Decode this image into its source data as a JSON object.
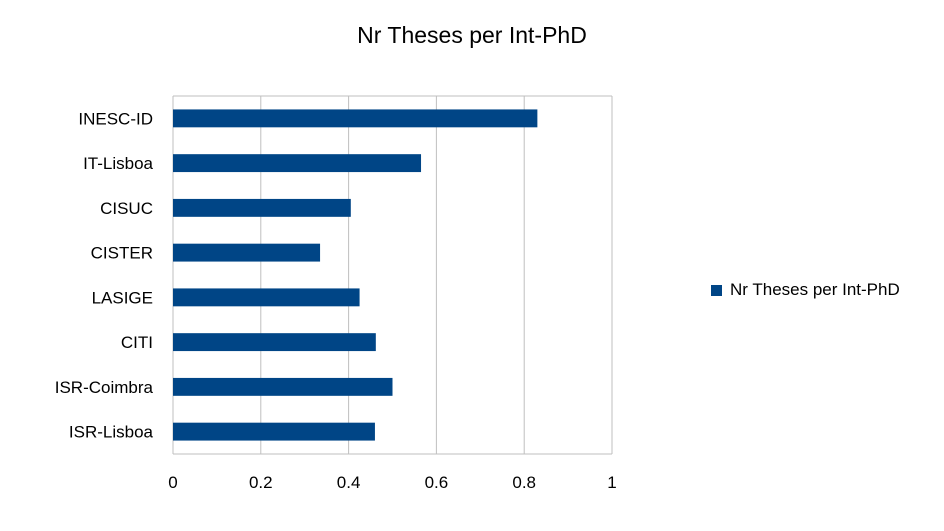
{
  "chart_data": {
    "type": "bar",
    "orientation": "horizontal",
    "title": "Nr Theses per Int-PhD",
    "xlabel": "",
    "ylabel": "",
    "categories": [
      "INESC-ID",
      "IT-Lisboa",
      "CISUC",
      "CISTER",
      "LASIGE",
      "CITI",
      "ISR-Coimbra",
      "ISR-Lisboa"
    ],
    "series": [
      {
        "name": "Nr Theses per Int-PhD",
        "color": "#004586",
        "values": [
          0.83,
          0.565,
          0.405,
          0.335,
          0.425,
          0.462,
          0.5,
          0.46
        ]
      }
    ],
    "xlim": [
      0,
      1
    ],
    "xticks": [
      "0",
      "0.2",
      "0.4",
      "0.6",
      "0.8",
      "1"
    ],
    "xtick_values": [
      0,
      0.2,
      0.4,
      0.6,
      0.8,
      1
    ],
    "grid": true,
    "legend_position": "right"
  }
}
